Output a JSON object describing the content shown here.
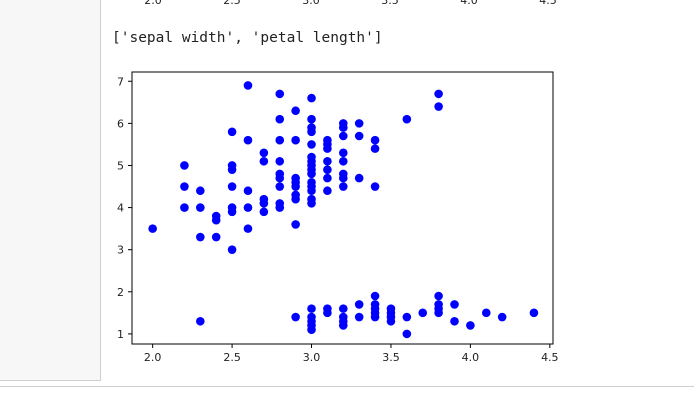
{
  "output": {
    "printed_text": "['sepal width', 'petal length']"
  },
  "prev_chart": {
    "tick_labels": [
      "2.0",
      "2.5",
      "3.0",
      "3.5",
      "4.0",
      "4.5"
    ]
  },
  "chart_data": {
    "type": "scatter",
    "title": "",
    "xlabel": "",
    "ylabel": "",
    "xlim": [
      1.87,
      4.52
    ],
    "ylim": [
      0.76,
      7.22
    ],
    "xticks": [
      2.0,
      2.5,
      3.0,
      3.5,
      4.0,
      4.5
    ],
    "xtick_labels": [
      "2.0",
      "2.5",
      "3.0",
      "3.5",
      "4.0",
      "4.5"
    ],
    "yticks": [
      1,
      2,
      3,
      4,
      5,
      6,
      7
    ],
    "ytick_labels": [
      "1",
      "2",
      "3",
      "4",
      "5",
      "6",
      "7"
    ],
    "grid": false,
    "marker_color": "#0000ff",
    "series": [
      {
        "points": [
          [
            2.0,
            3.5
          ],
          [
            2.2,
            4.0
          ],
          [
            2.2,
            4.5
          ],
          [
            2.2,
            5.0
          ],
          [
            2.3,
            1.3
          ],
          [
            2.3,
            3.3
          ],
          [
            2.3,
            4.0
          ],
          [
            2.3,
            4.4
          ],
          [
            2.4,
            3.3
          ],
          [
            2.4,
            3.7
          ],
          [
            2.4,
            3.8
          ],
          [
            2.5,
            3.0
          ],
          [
            2.5,
            3.9
          ],
          [
            2.5,
            4.0
          ],
          [
            2.5,
            4.5
          ],
          [
            2.5,
            4.9
          ],
          [
            2.5,
            5.0
          ],
          [
            2.5,
            5.8
          ],
          [
            2.6,
            3.5
          ],
          [
            2.6,
            4.0
          ],
          [
            2.6,
            4.4
          ],
          [
            2.6,
            5.6
          ],
          [
            2.6,
            6.9
          ],
          [
            2.7,
            3.9
          ],
          [
            2.7,
            4.1
          ],
          [
            2.7,
            4.2
          ],
          [
            2.7,
            5.1
          ],
          [
            2.7,
            5.3
          ],
          [
            2.8,
            4.0
          ],
          [
            2.8,
            4.1
          ],
          [
            2.8,
            4.5
          ],
          [
            2.8,
            4.7
          ],
          [
            2.8,
            4.8
          ],
          [
            2.8,
            5.1
          ],
          [
            2.8,
            5.6
          ],
          [
            2.8,
            6.1
          ],
          [
            2.8,
            6.7
          ],
          [
            2.9,
            1.4
          ],
          [
            2.9,
            3.6
          ],
          [
            2.9,
            4.2
          ],
          [
            2.9,
            4.3
          ],
          [
            2.9,
            4.5
          ],
          [
            2.9,
            4.6
          ],
          [
            2.9,
            4.7
          ],
          [
            2.9,
            5.6
          ],
          [
            2.9,
            6.3
          ],
          [
            3.0,
            1.1
          ],
          [
            3.0,
            1.2
          ],
          [
            3.0,
            1.3
          ],
          [
            3.0,
            1.4
          ],
          [
            3.0,
            1.6
          ],
          [
            3.0,
            4.1
          ],
          [
            3.0,
            4.2
          ],
          [
            3.0,
            4.4
          ],
          [
            3.0,
            4.5
          ],
          [
            3.0,
            4.6
          ],
          [
            3.0,
            4.8
          ],
          [
            3.0,
            4.9
          ],
          [
            3.0,
            5.0
          ],
          [
            3.0,
            5.1
          ],
          [
            3.0,
            5.2
          ],
          [
            3.0,
            5.5
          ],
          [
            3.0,
            5.8
          ],
          [
            3.0,
            5.9
          ],
          [
            3.0,
            6.1
          ],
          [
            3.0,
            6.6
          ],
          [
            3.1,
            1.5
          ],
          [
            3.1,
            1.6
          ],
          [
            3.1,
            4.4
          ],
          [
            3.1,
            4.7
          ],
          [
            3.1,
            4.9
          ],
          [
            3.1,
            5.1
          ],
          [
            3.1,
            5.4
          ],
          [
            3.1,
            5.5
          ],
          [
            3.1,
            5.6
          ],
          [
            3.2,
            1.2
          ],
          [
            3.2,
            1.3
          ],
          [
            3.2,
            1.4
          ],
          [
            3.2,
            1.6
          ],
          [
            3.2,
            4.5
          ],
          [
            3.2,
            4.7
          ],
          [
            3.2,
            4.8
          ],
          [
            3.2,
            5.1
          ],
          [
            3.2,
            5.3
          ],
          [
            3.2,
            5.7
          ],
          [
            3.2,
            5.9
          ],
          [
            3.2,
            6.0
          ],
          [
            3.3,
            1.4
          ],
          [
            3.3,
            1.7
          ],
          [
            3.3,
            4.7
          ],
          [
            3.3,
            5.7
          ],
          [
            3.3,
            6.0
          ],
          [
            3.4,
            1.4
          ],
          [
            3.4,
            1.5
          ],
          [
            3.4,
            1.6
          ],
          [
            3.4,
            1.7
          ],
          [
            3.4,
            1.9
          ],
          [
            3.4,
            4.5
          ],
          [
            3.4,
            5.4
          ],
          [
            3.4,
            5.6
          ],
          [
            3.5,
            1.3
          ],
          [
            3.5,
            1.4
          ],
          [
            3.5,
            1.5
          ],
          [
            3.5,
            1.6
          ],
          [
            3.6,
            1.0
          ],
          [
            3.6,
            1.4
          ],
          [
            3.6,
            6.1
          ],
          [
            3.7,
            1.5
          ],
          [
            3.8,
            1.5
          ],
          [
            3.8,
            1.6
          ],
          [
            3.8,
            1.7
          ],
          [
            3.8,
            1.9
          ],
          [
            3.8,
            6.4
          ],
          [
            3.8,
            6.7
          ],
          [
            3.9,
            1.3
          ],
          [
            3.9,
            1.7
          ],
          [
            4.0,
            1.2
          ],
          [
            4.1,
            1.5
          ],
          [
            4.2,
            1.4
          ],
          [
            4.4,
            1.5
          ]
        ]
      }
    ]
  }
}
